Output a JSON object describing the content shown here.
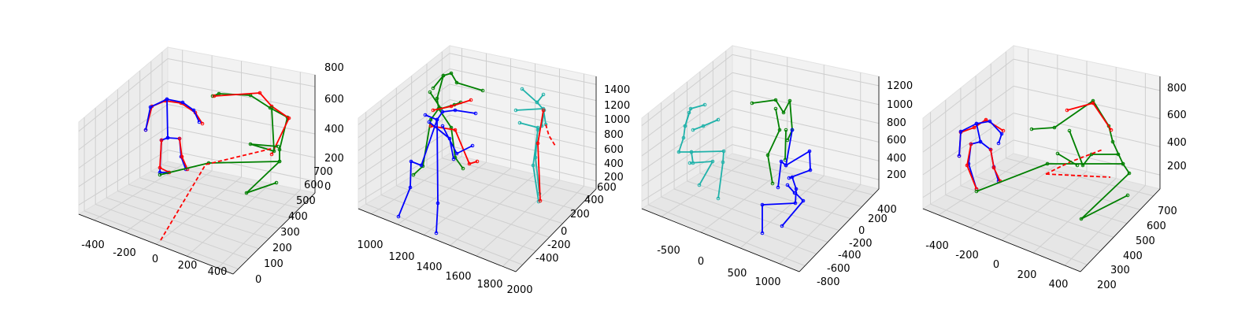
{
  "chart_data": [
    {
      "type": "scatter",
      "subtype": "3d-skeleton",
      "title": "",
      "x_ticks": [
        "-400",
        "-200",
        "0",
        "200",
        "400"
      ],
      "y_ticks": [
        "0",
        "100",
        "200",
        "300",
        "400",
        "500",
        "600",
        "700"
      ],
      "z_ticks": [
        "0",
        "200",
        "400",
        "600",
        "800"
      ],
      "series": [
        {
          "color": "#ff0000",
          "role": "prediction"
        },
        {
          "color": "#0000ff",
          "role": "left skeleton"
        },
        {
          "color": "#008000",
          "role": "right skeleton"
        }
      ]
    },
    {
      "type": "scatter",
      "subtype": "3d-skeleton",
      "title": "",
      "x_ticks": [
        "1000",
        "1200",
        "1400",
        "1600",
        "1800",
        "2000"
      ],
      "y_ticks": [
        "-400",
        "-200",
        "0",
        "200",
        "400",
        "600"
      ],
      "z_ticks": [
        "200",
        "400",
        "600",
        "800",
        "1000",
        "1200",
        "1400"
      ],
      "series": [
        {
          "color": "#ff0000",
          "role": "prediction"
        },
        {
          "color": "#0000ff",
          "role": "skeleton a"
        },
        {
          "color": "#008000",
          "role": "skeleton b"
        },
        {
          "color": "#20b2aa",
          "role": "skeleton c"
        }
      ]
    },
    {
      "type": "scatter",
      "subtype": "3d-skeleton",
      "title": "",
      "x_ticks": [
        "-500",
        "0",
        "500",
        "1000"
      ],
      "y_ticks": [
        "-800",
        "-600",
        "-400",
        "-200",
        "0",
        "200",
        "400"
      ],
      "z_ticks": [
        "200",
        "400",
        "600",
        "800",
        "1000",
        "1200"
      ],
      "series": [
        {
          "color": "#20b2aa",
          "role": "skeleton c"
        },
        {
          "color": "#008000",
          "role": "skeleton b"
        },
        {
          "color": "#0000ff",
          "role": "skeleton a"
        }
      ]
    },
    {
      "type": "scatter",
      "subtype": "3d-skeleton",
      "title": "",
      "x_ticks": [
        "-400",
        "-200",
        "0",
        "200",
        "400"
      ],
      "y_ticks": [
        "200",
        "300",
        "400",
        "500",
        "600",
        "700"
      ],
      "z_ticks": [
        "200",
        "400",
        "600",
        "800"
      ],
      "series": [
        {
          "color": "#ff0000",
          "role": "prediction"
        },
        {
          "color": "#0000ff",
          "role": "left skeleton"
        },
        {
          "color": "#008000",
          "role": "right skeleton"
        }
      ]
    }
  ]
}
